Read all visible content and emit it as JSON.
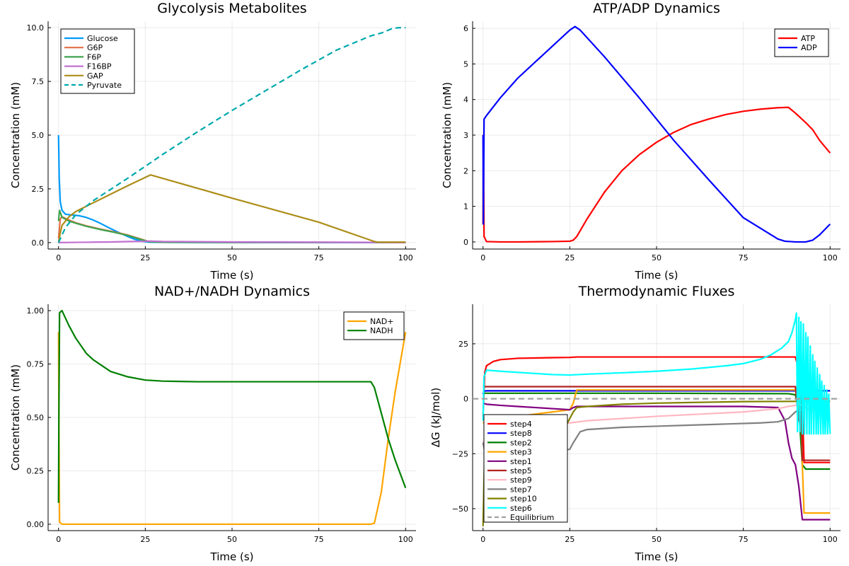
{
  "chart_data": [
    {
      "type": "line",
      "title": "Glycolysis Metabolites",
      "xlabel": "Time (s)",
      "ylabel": "Concentration (mM)",
      "xlim": [
        -3,
        103
      ],
      "ylim": [
        -0.3,
        10.3
      ],
      "xticks": [
        0,
        25,
        50,
        75,
        100
      ],
      "xtick_labels": [
        "0",
        "25",
        "50",
        "75",
        "100"
      ],
      "yticks": [
        0,
        2.5,
        5,
        7.5,
        10
      ],
      "ytick_labels": [
        "0.0",
        "2.5",
        "5.0",
        "7.5",
        "10.0"
      ],
      "grid": true,
      "legend_position": "top-left",
      "series": [
        {
          "name": "Glucose",
          "color": "#009AFA",
          "dash": false,
          "x": [
            0,
            0.2,
            0.5,
            1,
            2,
            4,
            6,
            8,
            10,
            12,
            15,
            18,
            20,
            22,
            24,
            26,
            30,
            50,
            100
          ],
          "y": [
            5.0,
            3.0,
            1.9,
            1.5,
            1.32,
            1.28,
            1.25,
            1.17,
            1.05,
            0.9,
            0.65,
            0.42,
            0.28,
            0.15,
            0.06,
            0.02,
            0.01,
            0.005,
            0.005
          ]
        },
        {
          "name": "G6P",
          "color": "#E36F47",
          "dash": false,
          "x": [
            0,
            0.5,
            1,
            3,
            5,
            8,
            12,
            16,
            20,
            24,
            26,
            30,
            50,
            100
          ],
          "y": [
            0.2,
            1.1,
            1.2,
            1.05,
            0.92,
            0.78,
            0.63,
            0.5,
            0.35,
            0.15,
            0.05,
            0.02,
            0.01,
            0.01
          ]
        },
        {
          "name": "F6P",
          "color": "#3EA44E",
          "dash": false,
          "x": [
            0,
            0.3,
            1,
            3,
            5,
            8,
            12,
            16,
            20,
            24,
            26,
            30,
            50,
            100
          ],
          "y": [
            1.0,
            1.5,
            1.18,
            1.0,
            0.9,
            0.76,
            0.61,
            0.48,
            0.33,
            0.13,
            0.04,
            0.02,
            0.01,
            0.01
          ]
        },
        {
          "name": "F16BP",
          "color": "#C271D2",
          "dash": false,
          "x": [
            0,
            5,
            10,
            15,
            20,
            25,
            26,
            30,
            50,
            75,
            90,
            100
          ],
          "y": [
            0.0,
            0.01,
            0.02,
            0.03,
            0.05,
            0.06,
            0.07,
            0.05,
            0.03,
            0.02,
            0.01,
            0.0
          ]
        },
        {
          "name": "GAP",
          "color": "#AC8D18",
          "dash": false,
          "x": [
            0,
            0.5,
            1,
            3,
            5,
            10,
            15,
            20,
            26.5,
            50,
            75,
            91,
            92,
            100
          ],
          "y": [
            0.0,
            0.45,
            0.8,
            1.2,
            1.45,
            1.85,
            2.25,
            2.65,
            3.15,
            2.07,
            0.95,
            0.05,
            0.02,
            0.02
          ]
        },
        {
          "name": "Pyruvate",
          "color": "#00A9AD",
          "dash": true,
          "x": [
            0,
            2,
            5,
            10,
            20,
            30,
            40,
            50,
            60,
            70,
            80,
            90,
            93,
            96,
            98,
            100
          ],
          "y": [
            0.0,
            0.7,
            1.3,
            1.95,
            3.0,
            4.1,
            5.15,
            6.15,
            7.1,
            8.05,
            8.95,
            9.62,
            9.75,
            9.95,
            10.0,
            10.0
          ]
        }
      ]
    },
    {
      "type": "line",
      "title": "ATP/ADP Dynamics",
      "xlabel": "Time (s)",
      "ylabel": "Concentration (mM)",
      "xlim": [
        -3,
        103
      ],
      "ylim": [
        -0.2,
        6.2
      ],
      "xticks": [
        0,
        25,
        50,
        75,
        100
      ],
      "xtick_labels": [
        "0",
        "25",
        "50",
        "75",
        "100"
      ],
      "yticks": [
        0,
        1,
        2,
        3,
        4,
        5,
        6
      ],
      "ytick_labels": [
        "0",
        "1",
        "2",
        "3",
        "4",
        "5",
        "6"
      ],
      "grid": true,
      "legend_position": "top-right",
      "series": [
        {
          "name": "ATP",
          "color": "#FF0000",
          "dash": false,
          "x": [
            0,
            0.1,
            0.3,
            1,
            5,
            10,
            20,
            25,
            26,
            27,
            30,
            35,
            40,
            45,
            50,
            55,
            60,
            65,
            70,
            75,
            80,
            85,
            88,
            90,
            93,
            95,
            97,
            100
          ],
          "y": [
            0.5,
            3.0,
            0.15,
            0.01,
            0.0,
            0.0,
            0.01,
            0.02,
            0.05,
            0.15,
            0.65,
            1.4,
            2.0,
            2.45,
            2.8,
            3.08,
            3.3,
            3.45,
            3.58,
            3.67,
            3.73,
            3.77,
            3.78,
            3.62,
            3.35,
            3.15,
            2.85,
            2.5
          ]
        },
        {
          "name": "ADP",
          "color": "#0000FF",
          "dash": false,
          "x": [
            0,
            0.1,
            0.3,
            1,
            5,
            10,
            15,
            20,
            25,
            26.5,
            28,
            35,
            45,
            55,
            65,
            75,
            85,
            87,
            90,
            93,
            95,
            97,
            100
          ],
          "y": [
            3.0,
            0.5,
            3.45,
            3.55,
            4.05,
            4.6,
            5.05,
            5.5,
            5.95,
            6.05,
            5.95,
            5.2,
            4.05,
            2.85,
            1.75,
            0.68,
            0.08,
            0.02,
            0.0,
            0.0,
            0.05,
            0.2,
            0.5
          ]
        }
      ]
    },
    {
      "type": "line",
      "title": "NAD+/NADH Dynamics",
      "xlabel": "Time (s)",
      "ylabel": "Concentration (mM)",
      "xlim": [
        -3,
        103
      ],
      "ylim": [
        -0.03,
        1.03
      ],
      "xticks": [
        0,
        25,
        50,
        75,
        100
      ],
      "xtick_labels": [
        "0",
        "25",
        "50",
        "75",
        "100"
      ],
      "yticks": [
        0,
        0.25,
        0.5,
        0.75,
        1.0
      ],
      "ytick_labels": [
        "0.00",
        "0.25",
        "0.50",
        "0.75",
        "1.00"
      ],
      "grid": true,
      "legend_position": "top-right",
      "series": [
        {
          "name": "NAD+",
          "color": "#FFA500",
          "dash": false,
          "x": [
            0,
            0.1,
            0.3,
            1,
            10,
            50,
            90,
            91,
            93,
            95,
            97,
            100
          ],
          "y": [
            0.9,
            0.5,
            0.01,
            0.0,
            0.0,
            0.0,
            0.0,
            0.005,
            0.15,
            0.4,
            0.62,
            0.9
          ]
        },
        {
          "name": "NADH",
          "color": "#008000",
          "dash": false,
          "x": [
            0,
            0.1,
            0.3,
            1,
            3,
            5,
            8,
            10,
            15,
            20,
            25,
            30,
            40,
            50,
            60,
            70,
            80,
            90,
            91,
            93,
            95,
            97,
            100
          ],
          "y": [
            0.1,
            0.5,
            0.99,
            1.0,
            0.93,
            0.87,
            0.8,
            0.77,
            0.715,
            0.69,
            0.675,
            0.67,
            0.667,
            0.667,
            0.667,
            0.667,
            0.667,
            0.667,
            0.64,
            0.52,
            0.4,
            0.3,
            0.17
          ]
        }
      ]
    },
    {
      "type": "line",
      "title": "Thermodynamic Fluxes",
      "xlabel": "Time (s)",
      "ylabel": "ΔG (kJ/mol)",
      "xlim": [
        -3,
        103
      ],
      "ylim": [
        -60,
        43
      ],
      "xticks": [
        0,
        25,
        50,
        75,
        100
      ],
      "xtick_labels": [
        "0",
        "25",
        "50",
        "75",
        "100"
      ],
      "yticks": [
        -50,
        -25,
        0,
        25
      ],
      "ytick_labels": [
        "−50",
        "−25",
        "0",
        "25"
      ],
      "grid": true,
      "legend_position": "bottom-left",
      "series": [
        {
          "name": "step4",
          "color": "#FF0000",
          "dash": false,
          "x": [
            0,
            0.5,
            1,
            3,
            5,
            10,
            20,
            25,
            27,
            50,
            75,
            90,
            91,
            91.3,
            91.6,
            92,
            92.5,
            93,
            100
          ],
          "y": [
            -8,
            12,
            15,
            17,
            17.8,
            18.4,
            18.7,
            18.8,
            19.0,
            19.0,
            19.0,
            19.0,
            13,
            5,
            12,
            -3,
            -29,
            -29,
            -29
          ]
        },
        {
          "name": "step8",
          "color": "#0000FF",
          "dash": false,
          "x": [
            0,
            0.3,
            1,
            10,
            50,
            90,
            100
          ],
          "y": [
            2,
            3.5,
            3.6,
            3.6,
            3.6,
            3.6,
            3.6
          ]
        },
        {
          "name": "step2",
          "color": "#008000",
          "dash": false,
          "x": [
            0,
            1,
            10,
            50,
            88,
            90,
            91,
            92,
            93,
            100
          ],
          "y": [
            2.5,
            2.5,
            2.5,
            2.5,
            2.3,
            1.8,
            -5,
            -30,
            -32,
            -32
          ]
        },
        {
          "name": "step3",
          "color": "#FFA500",
          "dash": false,
          "x": [
            0,
            1,
            5,
            10,
            15,
            20,
            25,
            26,
            27,
            30,
            50,
            75,
            90,
            91,
            91.5,
            92,
            92.5,
            93,
            100
          ],
          "y": [
            -11,
            -10,
            -9,
            -8,
            -7,
            -6,
            -5,
            -2,
            4,
            4,
            4,
            4,
            4,
            -5,
            0,
            -30,
            -52,
            -52,
            -52
          ]
        },
        {
          "name": "step1",
          "color": "#800080",
          "dash": false,
          "x": [
            0,
            1,
            5,
            10,
            20,
            25,
            26,
            27,
            30,
            50,
            75,
            85,
            87,
            88,
            89,
            90,
            91,
            92,
            100
          ],
          "y": [
            -2,
            -2.5,
            -3,
            -3.5,
            -4.5,
            -5,
            -4,
            -3.5,
            -3.5,
            -3.5,
            -3.5,
            -4,
            -10,
            -20,
            -27,
            -30,
            -40,
            -55,
            -55
          ]
        },
        {
          "name": "step5",
          "color": "#B22222",
          "dash": false,
          "x": [
            0,
            1,
            10,
            50,
            90,
            91,
            91.5,
            92,
            92.5,
            93,
            100
          ],
          "y": [
            5.5,
            5.5,
            5.5,
            5.5,
            5.5,
            -10,
            5,
            -28,
            -28,
            -28,
            -28
          ]
        },
        {
          "name": "step9",
          "color": "#FFB6C1",
          "dash": false,
          "x": [
            0,
            1,
            5,
            10,
            20,
            25,
            30,
            50,
            75,
            85,
            88,
            90,
            91,
            92,
            93,
            95
          ],
          "y": [
            -20,
            -18,
            -16,
            -14,
            -12,
            -11,
            -10,
            -8,
            -6,
            -4.5,
            -3.5,
            -3,
            -2.5,
            -3,
            -4,
            -6
          ]
        },
        {
          "name": "step7",
          "color": "#808080",
          "dash": false,
          "x": [
            0,
            1,
            5,
            10,
            15,
            20,
            25,
            26,
            28,
            30,
            40,
            50,
            60,
            70,
            80,
            85,
            88,
            90,
            91,
            92
          ],
          "y": [
            -20,
            -28,
            -27,
            -26,
            -25,
            -24,
            -23,
            -20,
            -15,
            -14,
            -13,
            -12.5,
            -12,
            -11.5,
            -11,
            -10.5,
            -9,
            -6,
            -5,
            -5
          ]
        },
        {
          "name": "step10",
          "color": "#808000",
          "dash": false,
          "x": [
            0,
            0.5,
            2,
            5,
            10,
            15,
            20,
            24,
            26,
            27,
            30,
            40,
            50,
            60,
            75,
            90,
            92,
            100
          ],
          "y": [
            -58,
            -22,
            -18,
            -16,
            -15,
            -14,
            -13.5,
            -12,
            -6,
            -4,
            -3.5,
            -2.5,
            -2,
            -1.7,
            -1.3,
            -1.2,
            -1.2,
            -1.2
          ]
        },
        {
          "name": "step6",
          "color": "#00FFFF",
          "dash": false,
          "x": [
            0,
            0.3,
            1,
            5,
            10,
            15,
            20,
            25,
            30,
            40,
            50,
            60,
            70,
            75,
            80,
            83,
            86,
            88,
            89,
            90,
            90.3,
            90.6,
            91,
            91.3,
            91.6,
            92,
            92.3,
            92.6,
            93,
            93.3,
            93.6,
            94,
            94.3,
            94.6,
            95,
            95.3,
            95.6,
            96,
            96.3,
            96.6,
            97,
            97.3,
            97.6,
            98,
            98.3,
            98.6,
            99,
            99.3,
            99.6,
            100
          ],
          "y": [
            -10,
            10,
            13,
            12.5,
            12,
            11.5,
            11,
            10.8,
            11.2,
            11.8,
            12.5,
            13.5,
            15,
            16,
            18,
            20,
            23,
            26,
            30,
            36,
            39,
            -15,
            37,
            -15,
            35,
            -16,
            34,
            -16,
            30,
            -16,
            28,
            -16,
            24,
            -16,
            20,
            -16,
            17,
            -16,
            14,
            -16,
            11,
            -16,
            8,
            -16,
            6,
            -16,
            4,
            -16,
            2,
            -16
          ]
        },
        {
          "name": "Equilibrium",
          "color": "#A0A0A0",
          "dash": true,
          "x": [
            -3,
            103
          ],
          "y": [
            0,
            0
          ]
        }
      ]
    }
  ]
}
